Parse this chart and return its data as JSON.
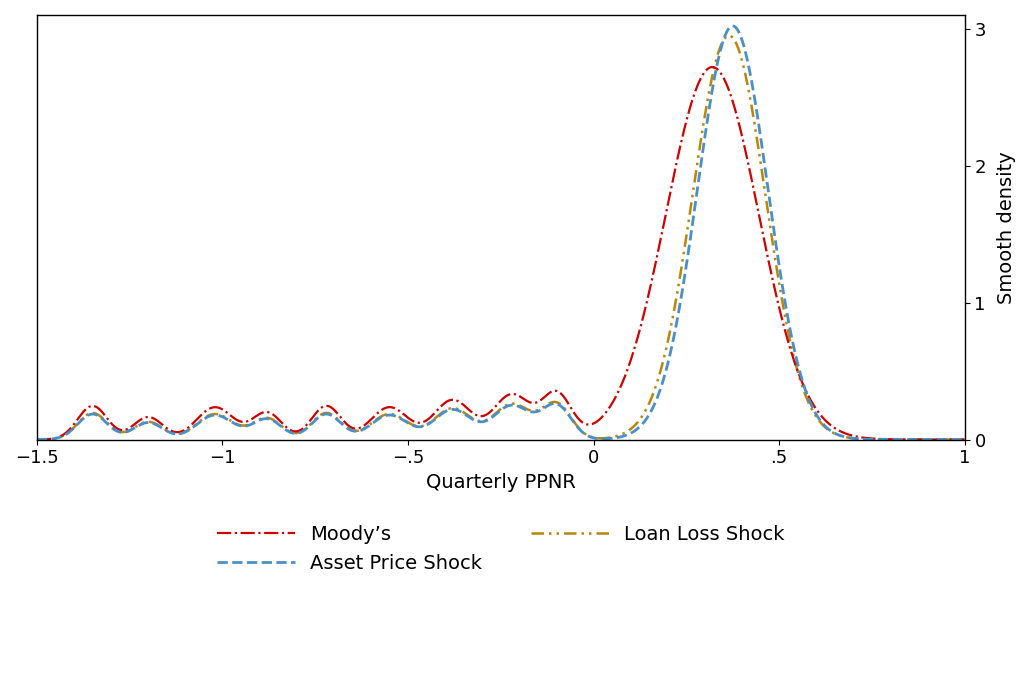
{
  "xlabel": "Quarterly PPNR",
  "ylabel": "Smooth density",
  "xlim": [
    -1.5,
    1.0
  ],
  "ylim": [
    0,
    3.1
  ],
  "xticks": [
    -1.5,
    -1.0,
    -0.5,
    0.0,
    0.5,
    1.0
  ],
  "xticklabels": [
    "−1.5",
    "−1",
    "−.5",
    "0",
    ".5",
    "1"
  ],
  "yticks": [
    0,
    1,
    2,
    3
  ],
  "ytick_labels": [
    "0",
    "1",
    "2",
    "3"
  ],
  "series": {
    "moodys": {
      "label": "Moody’s",
      "color": "#cc0000",
      "linestyle": "-.",
      "linewidth": 1.6
    },
    "asset_price": {
      "label": "Asset Price Shock",
      "color": "#4a90c8",
      "linestyle": "--",
      "linewidth": 2.0
    },
    "loan_loss": {
      "label": "Loan Loss Shock",
      "color": "#b8860b",
      "linestyle": "--",
      "linewidth": 1.8,
      "dashes": [
        4,
        2,
        1,
        2
      ]
    }
  },
  "legend_ncol": 2,
  "background_color": "#ffffff",
  "tick_fontsize": 13,
  "label_fontsize": 14
}
